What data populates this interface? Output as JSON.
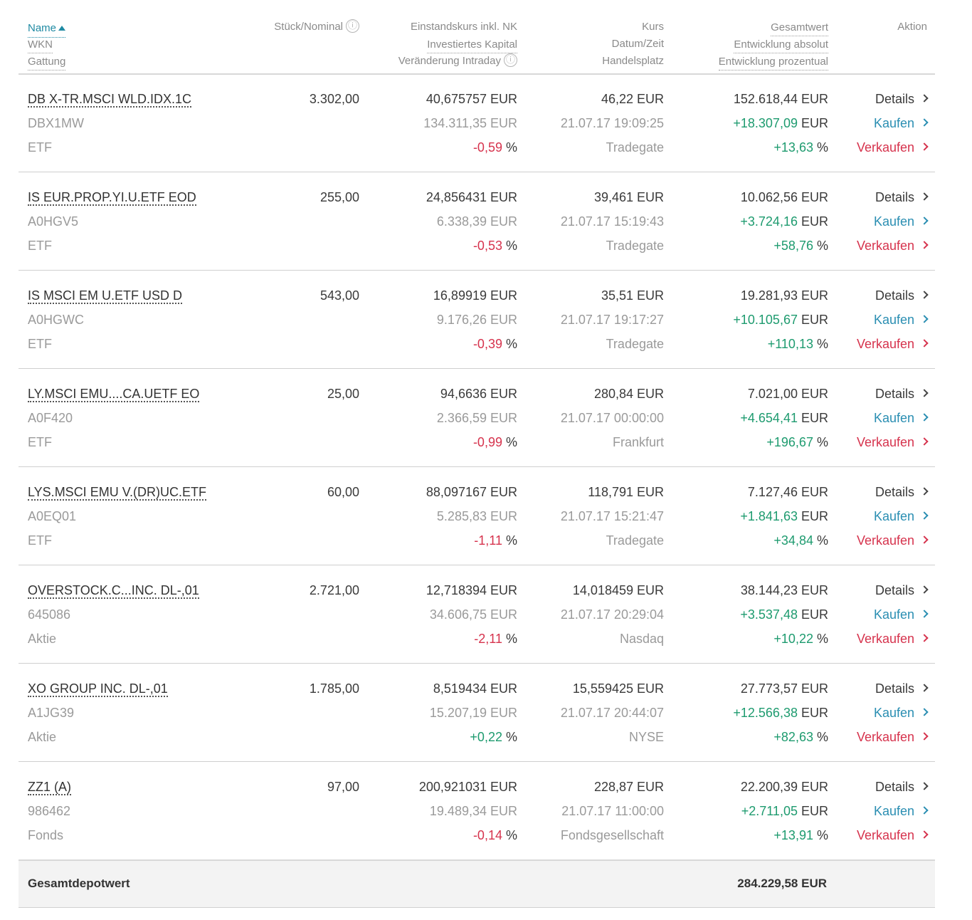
{
  "headers": {
    "name": "Name",
    "wkn": "WKN",
    "gattung": "Gattung",
    "stueck": "Stück/Nominal",
    "einstand": "Einstandskurs inkl. NK",
    "investiert": "Investiertes Kapital",
    "veraenderung": "Veränderung Intraday",
    "kurs": "Kurs",
    "datum": "Datum/Zeit",
    "handelsplatz": "Handelsplatz",
    "gesamtwert": "Gesamtwert",
    "entw_abs": "Entwicklung absolut",
    "entw_proz": "Entwicklung prozentual",
    "aktion": "Aktion",
    "info_icon": "ⓘ"
  },
  "actions": {
    "details": "Details",
    "kaufen": "Kaufen",
    "verkaufen": "Verkaufen"
  },
  "rows": [
    {
      "name": "DB X-TR.MSCI WLD.IDX.1C",
      "wkn": "DBX1MW",
      "gattung": "ETF",
      "stueck": "3.302,00",
      "einstand": "40,675757 EUR",
      "investiert": "134.311,35 EUR",
      "intraday": "-0,59",
      "kurs": "46,22 EUR",
      "datum": "21.07.17 19:09:25",
      "platz": "Tradegate",
      "gesamt": "152.618,44 EUR",
      "abs": "+18.307,09",
      "proz": "+13,63"
    },
    {
      "name": "IS EUR.PROP.YI.U.ETF EOD",
      "wkn": "A0HGV5",
      "gattung": "ETF",
      "stueck": "255,00",
      "einstand": "24,856431 EUR",
      "investiert": "6.338,39 EUR",
      "intraday": "-0,53",
      "kurs": "39,461 EUR",
      "datum": "21.07.17 15:19:43",
      "platz": "Tradegate",
      "gesamt": "10.062,56 EUR",
      "abs": "+3.724,16",
      "proz": "+58,76"
    },
    {
      "name": "IS MSCI EM U.ETF USD D",
      "wkn": "A0HGWC",
      "gattung": "ETF",
      "stueck": "543,00",
      "einstand": "16,89919 EUR",
      "investiert": "9.176,26 EUR",
      "intraday": "-0,39",
      "kurs": "35,51 EUR",
      "datum": "21.07.17 19:17:27",
      "platz": "Tradegate",
      "gesamt": "19.281,93 EUR",
      "abs": "+10.105,67",
      "proz": "+110,13"
    },
    {
      "name": "LY.MSCI EMU....CA.UETF EO",
      "wkn": "A0F420",
      "gattung": "ETF",
      "stueck": "25,00",
      "einstand": "94,6636 EUR",
      "investiert": "2.366,59 EUR",
      "intraday": "-0,99",
      "kurs": "280,84 EUR",
      "datum": "21.07.17 00:00:00",
      "platz": "Frankfurt",
      "gesamt": "7.021,00 EUR",
      "abs": "+4.654,41",
      "proz": "+196,67"
    },
    {
      "name": "LYS.MSCI EMU V.(DR)UC.ETF",
      "wkn": "A0EQ01",
      "gattung": "ETF",
      "stueck": "60,00",
      "einstand": "88,097167 EUR",
      "investiert": "5.285,83 EUR",
      "intraday": "-1,11",
      "kurs": "118,791 EUR",
      "datum": "21.07.17 15:21:47",
      "platz": "Tradegate",
      "gesamt": "7.127,46 EUR",
      "abs": "+1.841,63",
      "proz": "+34,84"
    },
    {
      "name": "OVERSTOCK.C...INC. DL-,01",
      "wkn": "645086",
      "gattung": "Aktie",
      "stueck": "2.721,00",
      "einstand": "12,718394 EUR",
      "investiert": "34.606,75 EUR",
      "intraday": "-2,11",
      "kurs": "14,018459 EUR",
      "datum": "21.07.17 20:29:04",
      "platz": "Nasdaq",
      "gesamt": "38.144,23 EUR",
      "abs": "+3.537,48",
      "proz": "+10,22"
    },
    {
      "name": "XO GROUP INC. DL-,01",
      "wkn": "A1JG39",
      "gattung": "Aktie",
      "stueck": "1.785,00",
      "einstand": "8,519434 EUR",
      "investiert": "15.207,19 EUR",
      "intraday": "+0,22",
      "kurs": "15,559425 EUR",
      "datum": "21.07.17 20:44:07",
      "platz": "NYSE",
      "gesamt": "27.773,57 EUR",
      "abs": "+12.566,38",
      "proz": "+82,63"
    },
    {
      "name": "ZZ1 (A)",
      "wkn": "986462",
      "gattung": "Fonds",
      "stueck": "97,00",
      "einstand": "200,921031 EUR",
      "investiert": "19.489,34 EUR",
      "intraday": "-0,14",
      "kurs": "228,87 EUR",
      "datum": "21.07.17 11:00:00",
      "platz": "Fondsgesellschaft",
      "gesamt": "22.200,39 EUR",
      "abs": "+2.711,05",
      "proz": "+13,91"
    }
  ],
  "units": {
    "eur": "EUR",
    "percent": "%"
  },
  "total": {
    "label": "Gesamtdepotwert",
    "value": "284.229,58 EUR"
  },
  "colors": {
    "positive": "#1e9b6f",
    "negative": "#d6334d",
    "link": "#2a8eb2",
    "sort_active": "#1f8aa3"
  }
}
